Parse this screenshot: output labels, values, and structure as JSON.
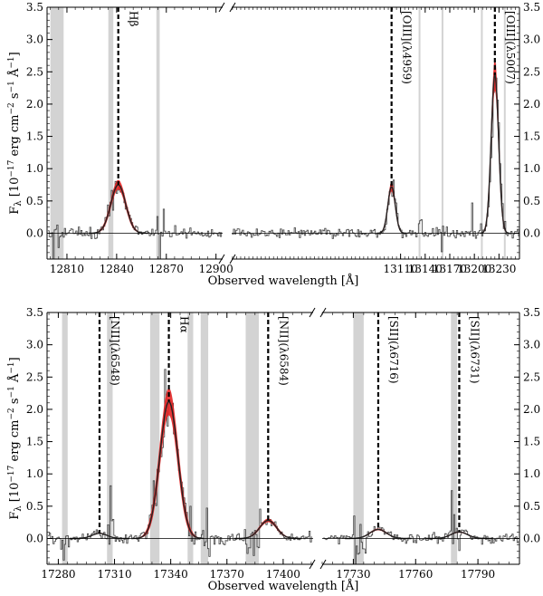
{
  "chart_data": [
    {
      "type": "line",
      "title": "",
      "xlabel": "Observed wavelength [Å]",
      "ylabel": "F_λ [10^-17 erg cm^-2 s^-1 Å^-1]",
      "ylabel_parts": {
        "base": "F",
        "sub": "λ",
        "pre": " [10",
        "e1": "−17",
        "mid": " erg cm",
        "e2": "−2",
        "s": " s",
        "e3": "−1",
        "A": " Å",
        "e4": "−1",
        "end": "]"
      },
      "ylim": [
        -0.4,
        3.5
      ],
      "yticks": [
        "3.5",
        "3.0",
        "2.5",
        "2.0",
        "1.5",
        "1.0",
        "0.5",
        "0.0"
      ],
      "yticks_right": [
        "3.5",
        "3.0",
        "2.5",
        "2.0",
        "1.5",
        "1.0",
        "0.5",
        "0.0"
      ],
      "ytick_values": [
        3.5,
        3.0,
        2.5,
        2.0,
        1.5,
        1.0,
        0.5,
        0.0
      ],
      "x_break": true,
      "segments": [
        {
          "xlim": [
            12798,
            12904
          ],
          "xticks": [
            12810,
            12840,
            12870,
            12900
          ],
          "xtick_labels": [
            "12810",
            "12840",
            "12870",
            "12900"
          ]
        },
        {
          "xlim": [
            12904,
            13255
          ],
          "xticks": [
            13110,
            13140,
            13170,
            13200,
            13230
          ],
          "xtick_labels": [
            "13110",
            "13140",
            "13170",
            "13200",
            "13230"
          ]
        }
      ],
      "emission_lines": [
        {
          "label": "Hβ",
          "wavelength": 12841,
          "peak": 0.75,
          "sigma": 4.5
        },
        {
          "label": "[OIII](λ4959)",
          "wavelength": 13099,
          "peak": 0.72,
          "sigma": 4.5
        },
        {
          "label": "[OIII](λ5007)",
          "wavelength": 13225,
          "peak": 2.45,
          "sigma": 4.5
        }
      ],
      "shaded_bands": [
        [
          12800,
          12808
        ],
        [
          12835,
          12838
        ],
        [
          12864,
          12866
        ],
        [
          13132,
          13134
        ],
        [
          13160,
          13162
        ],
        [
          13208,
          13210
        ],
        [
          13236,
          13238
        ]
      ]
    },
    {
      "type": "line",
      "title": "",
      "xlabel": "Observed wavelength [Å]",
      "ylabel": "F_λ [10^-17 erg cm^-2 s^-1 Å^-1]",
      "ylim": [
        -0.4,
        3.5
      ],
      "yticks": [
        "3.5",
        "3.0",
        "2.5",
        "2.0",
        "1.5",
        "1.0",
        "0.5",
        "0.0"
      ],
      "yticks_right": [
        "3.5",
        "3.0",
        "2.5",
        "2.0",
        "1.5",
        "1.0",
        "0.5",
        "0.0"
      ],
      "ytick_values": [
        3.5,
        3.0,
        2.5,
        2.0,
        1.5,
        1.0,
        0.5,
        0.0
      ],
      "x_break": true,
      "segments": [
        {
          "xlim": [
            17274,
            17416
          ],
          "xticks": [
            17280,
            17310,
            17340,
            17370,
            17400
          ],
          "xtick_labels": [
            "17280",
            "17310",
            "17340",
            "17370",
            "17400"
          ]
        },
        {
          "xlim": [
            17715,
            17810
          ],
          "xticks": [
            17730,
            17760,
            17790
          ],
          "xtick_labels": [
            "17730",
            "17760",
            "17790"
          ]
        }
      ],
      "emission_lines": [
        {
          "label": "[NII](λ6548)",
          "wavelength": 17302,
          "peak": 0.08,
          "sigma": 4.0
        },
        {
          "label": "Hα",
          "wavelength": 17339,
          "peak": 2.12,
          "sigma": 4.8
        },
        {
          "label": "[NII](λ6584)",
          "wavelength": 17392,
          "peak": 0.28,
          "sigma": 4.5
        },
        {
          "label": "[SII](λ6716)",
          "wavelength": 17742,
          "peak": 0.14,
          "sigma": 4.0
        },
        {
          "label": "[SII](λ6731)",
          "wavelength": 17781,
          "peak": 0.1,
          "sigma": 4.0
        }
      ],
      "shaded_bands": [
        [
          17282,
          17285
        ],
        [
          17306,
          17309
        ],
        [
          17329,
          17334
        ],
        [
          17349,
          17352
        ],
        [
          17356,
          17360
        ],
        [
          17380,
          17387
        ],
        [
          17730,
          17735
        ],
        [
          17777,
          17780
        ]
      ]
    }
  ]
}
